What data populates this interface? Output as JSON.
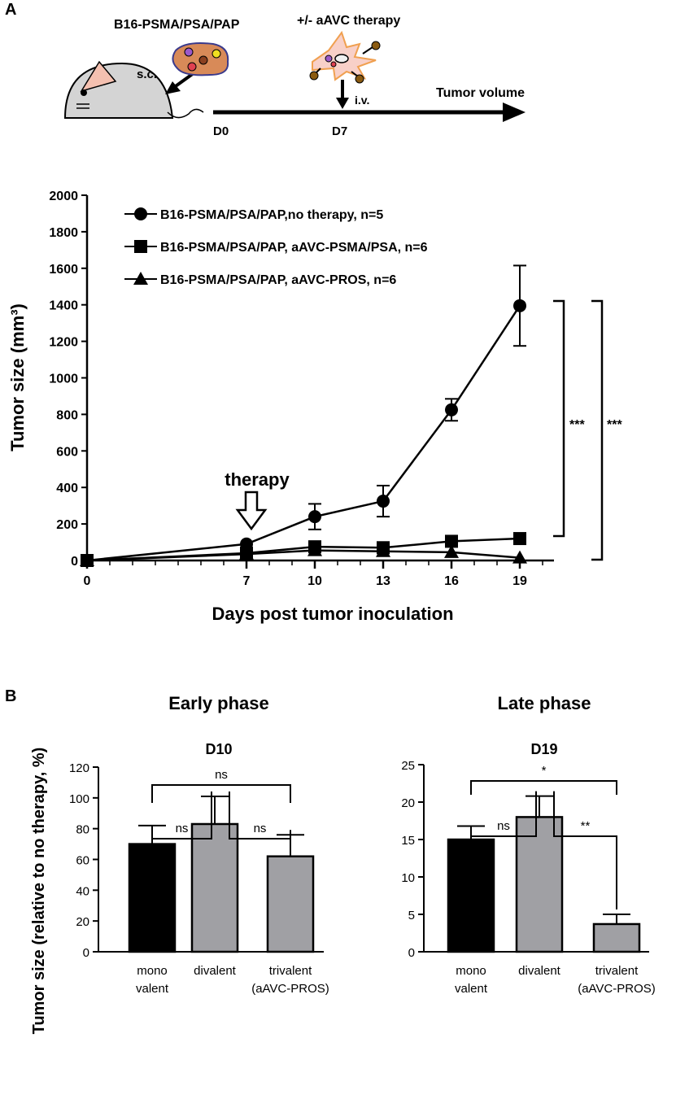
{
  "panelA": {
    "label": "A",
    "schematic": {
      "cell_line": "B16-PSMA/PSA/PAP",
      "therapy": "+/- aAVC therapy",
      "route_sc": "s.c.",
      "route_iv": "i.v.",
      "readout": "Tumor volume",
      "day0": "D0",
      "day7": "D7"
    },
    "therapy_marker": "therapy",
    "significance": [
      "***",
      "***"
    ]
  },
  "panelB": {
    "label": "B",
    "early_title": "Early phase",
    "late_title": "Late phase",
    "shared_ylabel": "Tumor size (relative to no therapy, %)"
  },
  "chart_data": [
    {
      "type": "line",
      "title": "",
      "xlabel": "Days post tumor inoculation",
      "ylabel": "Tumor size (mm³)",
      "x": [
        0,
        7,
        10,
        13,
        16,
        19
      ],
      "xlim": [
        0,
        20.5
      ],
      "ylim": [
        0,
        2000
      ],
      "yticks": [
        0,
        200,
        400,
        600,
        800,
        1000,
        1200,
        1400,
        1600,
        1800,
        2000
      ],
      "legend_position": "top-left",
      "series": [
        {
          "name": "B16-PSMA/PSA/PAP,no therapy, n=5",
          "marker": "circle",
          "values": [
            0,
            90,
            240,
            325,
            825,
            1395
          ],
          "err": [
            0,
            0,
            70,
            85,
            60,
            220
          ]
        },
        {
          "name": "B16-PSMA/PSA/PAP, aAVC-PSMA/PSA, n=6",
          "marker": "square",
          "values": [
            0,
            40,
            75,
            70,
            105,
            120
          ],
          "err": [
            0,
            0,
            0,
            0,
            0,
            0
          ]
        },
        {
          "name": "B16-PSMA/PSA/PAP, aAVC-PROS, n=6",
          "marker": "triangle",
          "values": [
            0,
            35,
            55,
            50,
            45,
            15
          ],
          "err": [
            0,
            0,
            0,
            0,
            0,
            0
          ]
        }
      ]
    },
    {
      "type": "bar",
      "title": "D10",
      "ylabel": "Tumor size (relative to no therapy, %)",
      "categories": [
        [
          "mono",
          "valent"
        ],
        [
          "divalent"
        ],
        [
          "trivalent",
          "(aAVC-PROS)"
        ]
      ],
      "values": [
        70,
        83,
        62
      ],
      "err": [
        12,
        18,
        14
      ],
      "colors": [
        "#000000",
        "#a0a0a4",
        "#a0a0a4"
      ],
      "ylim": [
        0,
        120
      ],
      "yticks": [
        0,
        20,
        40,
        60,
        80,
        100,
        120
      ],
      "comparisons": [
        {
          "from": 0,
          "to": 1,
          "label": "ns"
        },
        {
          "from": 1,
          "to": 2,
          "label": "ns"
        },
        {
          "from": 0,
          "to": 2,
          "label": "ns"
        }
      ]
    },
    {
      "type": "bar",
      "title": "D19",
      "categories": [
        [
          "mono",
          "valent"
        ],
        [
          "divalent"
        ],
        [
          "trivalent",
          "(aAVC-PROS)"
        ]
      ],
      "values": [
        15,
        18,
        3.7
      ],
      "err": [
        1.8,
        2.8,
        1.3
      ],
      "colors": [
        "#000000",
        "#a0a0a4",
        "#a0a0a4"
      ],
      "ylim": [
        0,
        25
      ],
      "yticks": [
        0,
        5,
        10,
        15,
        20,
        25
      ],
      "comparisons": [
        {
          "from": 0,
          "to": 1,
          "label": "ns"
        },
        {
          "from": 1,
          "to": 2,
          "label": "**"
        },
        {
          "from": 0,
          "to": 2,
          "label": "*"
        }
      ]
    }
  ]
}
